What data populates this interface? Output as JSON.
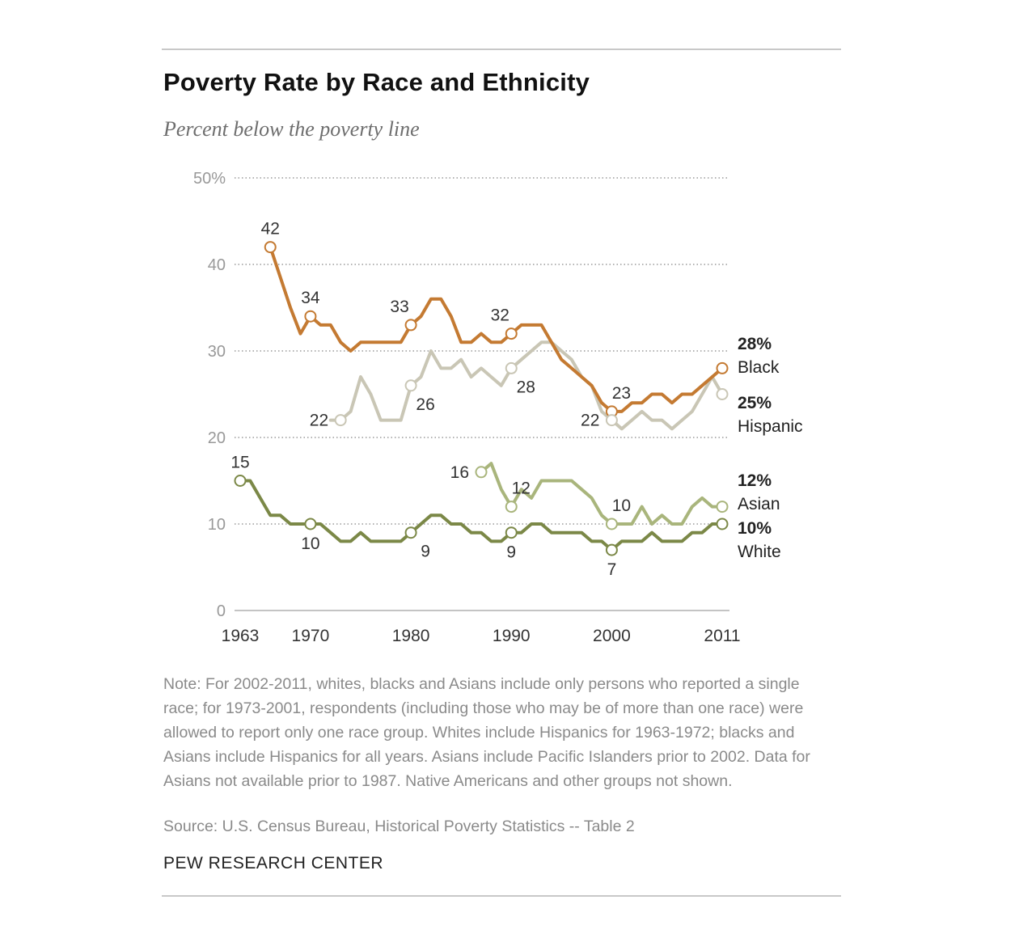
{
  "header": {
    "title": "Poverty Rate by Race and Ethnicity",
    "subtitle": "Percent below the poverty line"
  },
  "footer": {
    "note": "Note: For 2002-2011, whites, blacks and Asians include only persons who reported a single race; for 1973-2001, respondents (including those who may be of more than one race) were allowed to report only one race group. Whites include Hispanics for 1963-1972; blacks and Asians include Hispanics for all years. Asians include Pacific Islanders prior to 2002. Data for Asians not available prior to 1987. Native Americans and other groups not shown.",
    "source": "Source: U.S. Census Bureau, Historical Poverty Statistics -- Table 2",
    "organization": "PEW RESEARCH CENTER"
  },
  "chart_data": {
    "type": "line",
    "title": "Poverty Rate by Race and Ethnicity",
    "subtitle": "Percent below the poverty line",
    "xlabel": "",
    "ylabel": "",
    "xlim": [
      1963,
      2011
    ],
    "ylim": [
      0,
      50
    ],
    "x_ticks": [
      {
        "x": 1963,
        "label": "1963"
      },
      {
        "x": 1970,
        "label": "1970"
      },
      {
        "x": 1980,
        "label": "1980"
      },
      {
        "x": 1990,
        "label": "1990"
      },
      {
        "x": 2000,
        "label": "2000"
      },
      {
        "x": 2011,
        "label": "2011"
      }
    ],
    "y_ticks": [
      {
        "y": 0,
        "label": "0"
      },
      {
        "y": 10,
        "label": "10"
      },
      {
        "y": 20,
        "label": "20"
      },
      {
        "y": 30,
        "label": "30"
      },
      {
        "y": 40,
        "label": "40"
      },
      {
        "y": 50,
        "label": "50%"
      }
    ],
    "grid": "dotted horizontal",
    "legend": "direct labels at right",
    "series": [
      {
        "name": "Black",
        "end_value_label": "28%",
        "color": "#c47a32",
        "x": [
          1966,
          1968,
          1969,
          1970,
          1971,
          1972,
          1973,
          1974,
          1975,
          1976,
          1977,
          1978,
          1979,
          1980,
          1981,
          1982,
          1983,
          1984,
          1985,
          1986,
          1987,
          1988,
          1989,
          1990,
          1991,
          1992,
          1993,
          1994,
          1995,
          1996,
          1997,
          1998,
          1999,
          2000,
          2001,
          2002,
          2003,
          2004,
          2005,
          2006,
          2007,
          2008,
          2009,
          2010,
          2011
        ],
        "values": [
          42,
          35,
          32,
          34,
          33,
          33,
          31,
          30,
          31,
          31,
          31,
          31,
          31,
          33,
          34,
          36,
          36,
          34,
          31,
          31,
          32,
          31,
          31,
          32,
          33,
          33,
          33,
          31,
          29,
          28,
          27,
          26,
          24,
          23,
          23,
          24,
          24,
          25,
          25,
          24,
          25,
          25,
          26,
          27,
          28
        ]
      },
      {
        "name": "Hispanic",
        "end_value_label": "25%",
        "color": "#c9c6b5",
        "x": [
          1972,
          1973,
          1974,
          1975,
          1976,
          1977,
          1978,
          1979,
          1980,
          1981,
          1982,
          1983,
          1984,
          1985,
          1986,
          1987,
          1988,
          1989,
          1990,
          1991,
          1992,
          1993,
          1994,
          1995,
          1996,
          1997,
          1998,
          1999,
          2000,
          2001,
          2002,
          2003,
          2004,
          2005,
          2006,
          2007,
          2008,
          2009,
          2010,
          2011
        ],
        "values": [
          22,
          22,
          23,
          27,
          25,
          22,
          22,
          22,
          26,
          27,
          30,
          28,
          28,
          29,
          27,
          28,
          27,
          26,
          28,
          29,
          30,
          31,
          31,
          30,
          29,
          27,
          26,
          23,
          22,
          21,
          22,
          23,
          22,
          22,
          21,
          22,
          23,
          25,
          27,
          25
        ]
      },
      {
        "name": "Asian",
        "end_value_label": "12%",
        "color": "#a9b57c",
        "x": [
          1987,
          1988,
          1989,
          1990,
          1991,
          1992,
          1993,
          1994,
          1995,
          1996,
          1997,
          1998,
          1999,
          2000,
          2001,
          2002,
          2003,
          2004,
          2005,
          2006,
          2007,
          2008,
          2009,
          2010,
          2011
        ],
        "values": [
          16,
          17,
          14,
          12,
          14,
          13,
          15,
          15,
          15,
          15,
          14,
          13,
          11,
          10,
          10,
          10,
          12,
          10,
          11,
          10,
          10,
          12,
          13,
          12,
          12
        ]
      },
      {
        "name": "White",
        "end_value_label": "10%",
        "color": "#7b8847",
        "x": [
          1963,
          1964,
          1965,
          1966,
          1967,
          1968,
          1969,
          1970,
          1971,
          1972,
          1973,
          1974,
          1975,
          1976,
          1977,
          1978,
          1979,
          1980,
          1981,
          1982,
          1983,
          1984,
          1985,
          1986,
          1987,
          1988,
          1989,
          1990,
          1991,
          1992,
          1993,
          1994,
          1995,
          1996,
          1997,
          1998,
          1999,
          2000,
          2001,
          2002,
          2003,
          2004,
          2005,
          2006,
          2007,
          2008,
          2009,
          2010,
          2011
        ],
        "values": [
          15,
          15,
          13,
          11,
          11,
          10,
          10,
          10,
          10,
          9,
          8,
          8,
          9,
          8,
          8,
          8,
          8,
          9,
          10,
          11,
          11,
          10,
          10,
          9,
          9,
          8,
          8,
          9,
          9,
          10,
          10,
          9,
          9,
          9,
          9,
          8,
          8,
          7,
          8,
          8,
          8,
          9,
          8,
          8,
          8,
          9,
          9,
          10,
          10
        ]
      }
    ],
    "annotations": [
      {
        "series": "Black",
        "x": 1966,
        "y": 42,
        "label": "42",
        "pos": "above"
      },
      {
        "series": "Black",
        "x": 1970,
        "y": 34,
        "label": "34",
        "pos": "above"
      },
      {
        "series": "Black",
        "x": 1980,
        "y": 33,
        "label": "33",
        "pos": "above-left"
      },
      {
        "series": "Black",
        "x": 1990,
        "y": 32,
        "label": "32",
        "pos": "above-left"
      },
      {
        "series": "Black",
        "x": 2000,
        "y": 23,
        "label": "23",
        "pos": "above-right"
      },
      {
        "series": "Hispanic",
        "x": 1973,
        "y": 22,
        "label": "22",
        "pos": "left"
      },
      {
        "series": "Hispanic",
        "x": 1980,
        "y": 26,
        "label": "26",
        "pos": "below-right"
      },
      {
        "series": "Hispanic",
        "x": 1990,
        "y": 28,
        "label": "28",
        "pos": "below-right"
      },
      {
        "series": "Hispanic",
        "x": 2000,
        "y": 22,
        "label": "22",
        "pos": "left"
      },
      {
        "series": "Asian",
        "x": 1987,
        "y": 16,
        "label": "16",
        "pos": "left"
      },
      {
        "series": "Asian",
        "x": 1990,
        "y": 12,
        "label": "12",
        "pos": "above-right"
      },
      {
        "series": "Asian",
        "x": 2000,
        "y": 10,
        "label": "10",
        "pos": "above-right"
      },
      {
        "series": "White",
        "x": 1963,
        "y": 15,
        "label": "15",
        "pos": "above"
      },
      {
        "series": "White",
        "x": 1970,
        "y": 10,
        "label": "10",
        "pos": "below"
      },
      {
        "series": "White",
        "x": 1980,
        "y": 9,
        "label": "9",
        "pos": "below-right"
      },
      {
        "series": "White",
        "x": 1990,
        "y": 9,
        "label": "9",
        "pos": "below"
      },
      {
        "series": "White",
        "x": 2000,
        "y": 7,
        "label": "7",
        "pos": "below"
      }
    ],
    "end_markers": [
      {
        "series": "Black",
        "x": 2011,
        "y": 28
      },
      {
        "series": "Hispanic",
        "x": 2011,
        "y": 25
      },
      {
        "series": "Asian",
        "x": 2011,
        "y": 12
      },
      {
        "series": "White",
        "x": 2011,
        "y": 10
      }
    ]
  }
}
